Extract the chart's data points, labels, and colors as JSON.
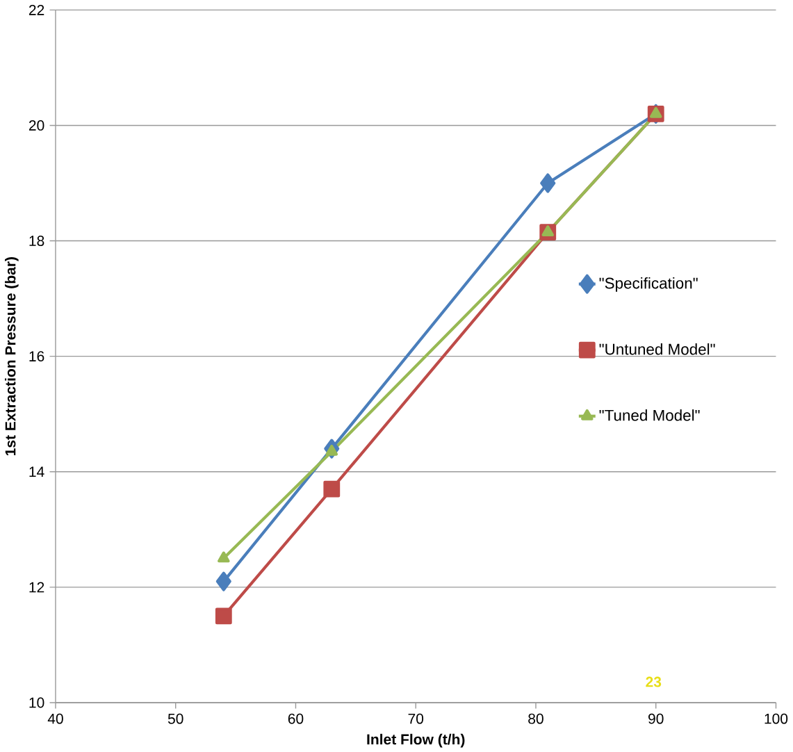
{
  "chart_data": {
    "type": "line",
    "xlabel": "Inlet Flow (t/h)",
    "ylabel": "1st Extraction Pressure (bar)",
    "x": [
      54,
      63,
      81,
      90
    ],
    "series": [
      {
        "name": "\"Specification\"",
        "color": "#4a7ebb",
        "marker": "diamond",
        "values": [
          12.1,
          14.4,
          19.0,
          20.2
        ]
      },
      {
        "name": "\"Untuned Model\"",
        "color": "#be4b48",
        "marker": "square",
        "values": [
          11.5,
          13.7,
          18.15,
          20.2
        ]
      },
      {
        "name": "\"Tuned Model\"",
        "color": "#98b954",
        "marker": "triangle",
        "values": [
          12.5,
          14.35,
          18.15,
          20.2
        ]
      }
    ],
    "xlim": [
      40,
      100
    ],
    "xticks": [
      40,
      50,
      60,
      70,
      80,
      90,
      100
    ],
    "ylim": [
      10,
      22
    ],
    "yticks": [
      10,
      12,
      14,
      16,
      18,
      20,
      22
    ],
    "grid": "y",
    "legend": "right",
    "annotations": [
      "23"
    ]
  }
}
